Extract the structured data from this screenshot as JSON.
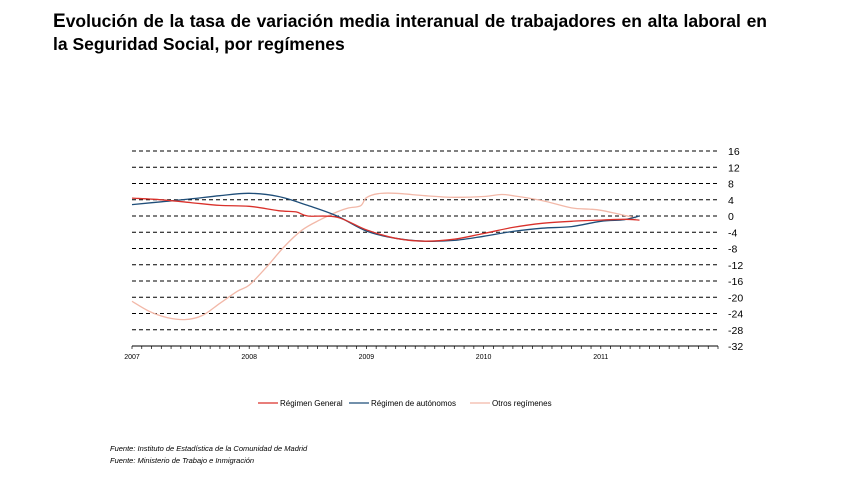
{
  "title": "Evolución de la tasa de variación media interanual de trabajadores en alta laboral en la Seguridad Social, por  regímenes",
  "sources": [
    "Fuente: Instituto de Estadística de la Comunidad de Madrid",
    "Fuente: Ministerio de Trabajo e Inmigración"
  ],
  "chart_data": {
    "type": "line",
    "title": "Evolución de la tasa de variación media interanual de trabajadores en alta laboral en la Seguridad Social, por  regímenes",
    "xlabel": "",
    "ylabel": "",
    "x_ticks": [
      "2007",
      "2008",
      "2009",
      "2010",
      "2011"
    ],
    "y_ticks": [
      16,
      12,
      8,
      4,
      0,
      -4,
      -8,
      -12,
      -16,
      -20,
      -24,
      -28,
      -32
    ],
    "ylim": [
      -32,
      16
    ],
    "xlim": [
      2007.0,
      2012.0
    ],
    "y_axis_side": "right",
    "grid": "horizontal dashed",
    "legend_position": "bottom",
    "series": [
      {
        "name": "Régimen General",
        "color": "#d9312b",
        "x": [
          2007.0,
          2007.25,
          2007.5,
          2007.75,
          2008.0,
          2008.25,
          2008.4,
          2008.5,
          2008.75,
          2009.0,
          2009.25,
          2009.5,
          2009.75,
          2010.0,
          2010.25,
          2010.5,
          2010.75,
          2011.0,
          2011.2,
          2011.33
        ],
        "values": [
          4.4,
          4.0,
          3.3,
          2.6,
          2.4,
          1.3,
          1.0,
          0.0,
          -0.3,
          -3.4,
          -5.5,
          -6.2,
          -5.7,
          -4.3,
          -2.8,
          -1.8,
          -1.3,
          -1.0,
          -0.8,
          -1.0
        ]
      },
      {
        "name": "Régimen de autónomos",
        "color": "#1f4e79",
        "x": [
          2007.0,
          2007.25,
          2007.5,
          2007.75,
          2008.0,
          2008.25,
          2008.5,
          2008.75,
          2009.0,
          2009.25,
          2009.5,
          2009.75,
          2010.0,
          2010.25,
          2010.5,
          2010.75,
          2011.0,
          2011.2,
          2011.33
        ],
        "values": [
          2.8,
          3.5,
          4.2,
          5.0,
          5.6,
          4.8,
          2.6,
          0.0,
          -3.7,
          -5.5,
          -6.2,
          -6.0,
          -5.0,
          -3.8,
          -3.0,
          -2.6,
          -1.3,
          -0.9,
          0.0
        ]
      },
      {
        "name": "Otros regímenes",
        "color": "#f2b8a8",
        "x": [
          2007.0,
          2007.15,
          2007.3,
          2007.45,
          2007.6,
          2007.75,
          2007.9,
          2008.0,
          2008.15,
          2008.3,
          2008.45,
          2008.6,
          2008.75,
          2008.85,
          2008.95,
          2009.0,
          2009.1,
          2009.25,
          2009.5,
          2009.75,
          2010.0,
          2010.15,
          2010.25,
          2010.5,
          2010.75,
          2010.9,
          2011.0,
          2011.15,
          2011.3
        ],
        "values": [
          -21.0,
          -23.5,
          -25.0,
          -25.5,
          -24.5,
          -21.5,
          -18.5,
          -17.0,
          -12.5,
          -7.5,
          -3.5,
          -1.0,
          1.0,
          2.0,
          2.5,
          4.5,
          5.5,
          5.6,
          5.0,
          4.6,
          4.8,
          5.3,
          5.0,
          3.8,
          2.0,
          1.7,
          1.4,
          0.5,
          -0.5
        ]
      }
    ]
  }
}
